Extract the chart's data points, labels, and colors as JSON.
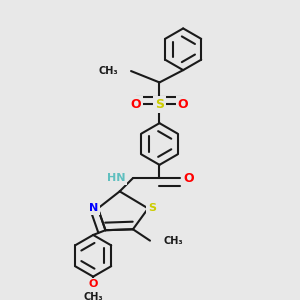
{
  "bg_color": "#e8e8e8",
  "bond_color": "#1a1a1a",
  "bond_width": 1.5,
  "dbo": 0.012,
  "atom_colors": {
    "N": "#0000ff",
    "O": "#ff0000",
    "S": "#cccc00",
    "NH": "#5fbfbf",
    "C": "#1a1a1a"
  },
  "fig_size": [
    3.0,
    3.0
  ],
  "dpi": 100,
  "xlim": [
    0,
    300
  ],
  "ylim": [
    0,
    300
  ]
}
